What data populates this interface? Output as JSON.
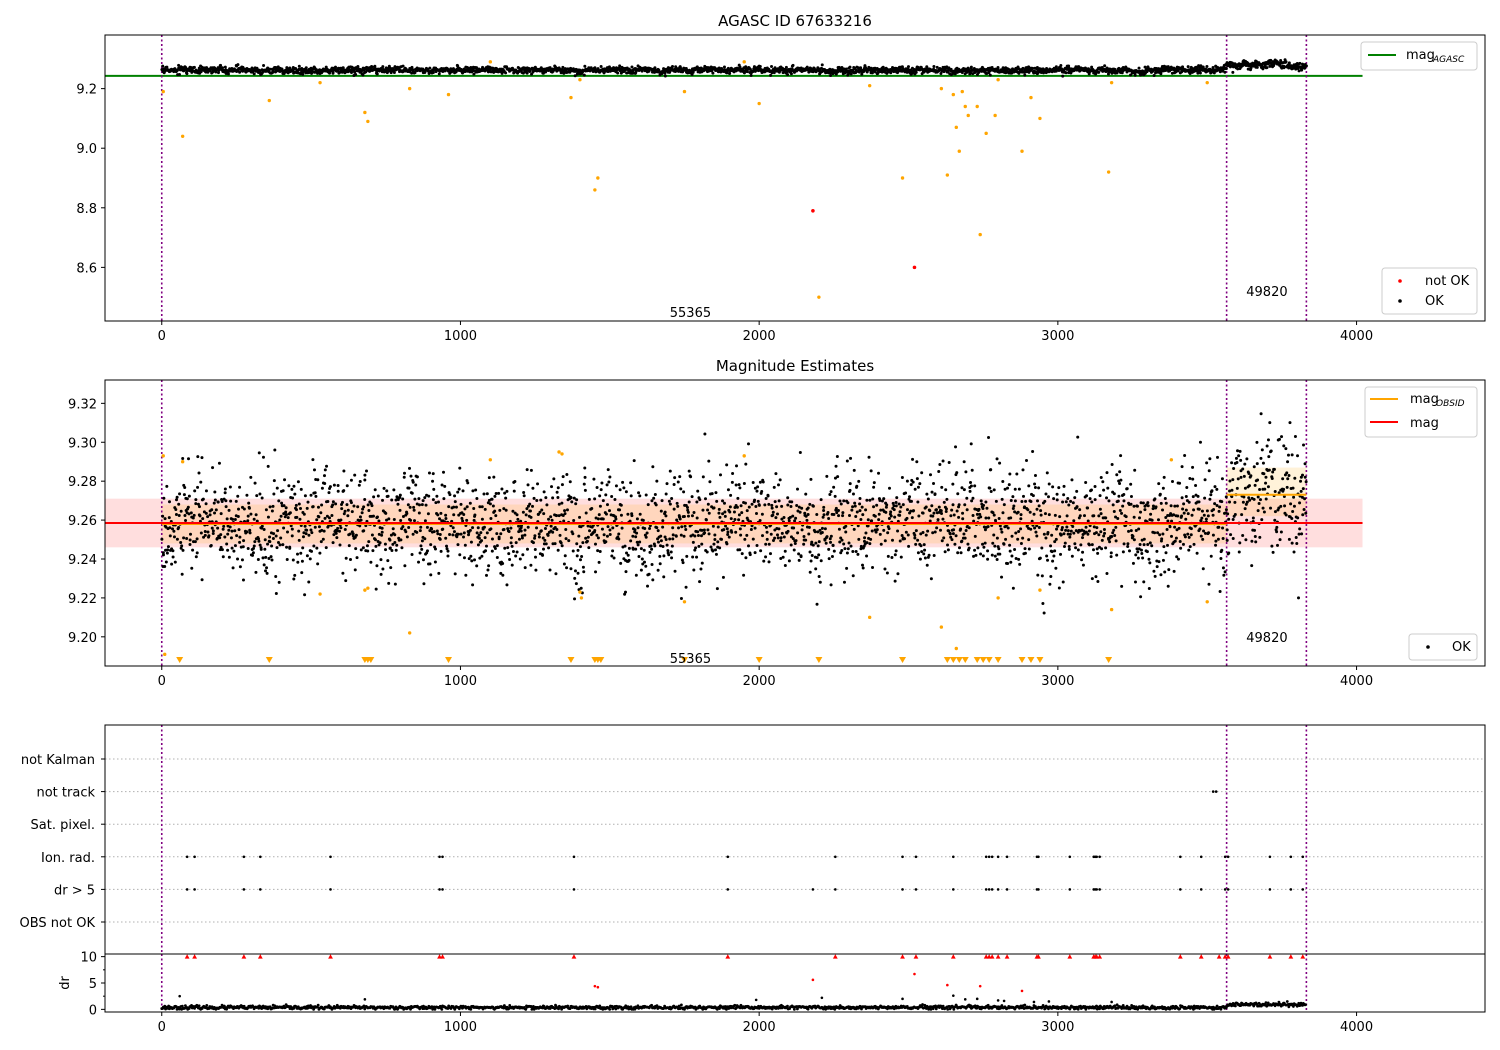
{
  "figure": {
    "width": 1500,
    "height": 1050
  },
  "chart_data": [
    {
      "type": "scatter",
      "title": "AGASC ID 67633216",
      "xlabel": "",
      "ylabel": "",
      "xlim": [
        -190,
        4430
      ],
      "ylim": [
        8.42,
        9.38
      ],
      "xticks": [
        0,
        1000,
        2000,
        3000,
        4000
      ],
      "yticks": [
        8.6,
        8.8,
        9.0,
        9.2
      ],
      "ytick_labels": [
        "8.6",
        "8.8",
        "9.0",
        "9.2"
      ],
      "obs_boundaries": [
        0,
        3565,
        3832
      ],
      "obs_labels": [
        {
          "text": "55365",
          "x": 1770,
          "y": 8.45
        },
        {
          "text": "49820",
          "x": 3700,
          "y": 8.52
        }
      ],
      "hlines": [
        {
          "name": "mag_AGASC",
          "y": 9.243,
          "x": [
            -190,
            4020
          ],
          "color": "#008000"
        }
      ],
      "ok_band": {
        "segments": [
          {
            "x": [
              0,
              3565
            ],
            "center": 9.262,
            "amp": 0.01
          },
          {
            "x": [
              3565,
              3832
            ],
            "center": 9.278,
            "amp": 0.012
          }
        ]
      },
      "outliers_orange": [
        [
          5,
          9.19
        ],
        [
          70,
          9.04
        ],
        [
          360,
          9.16
        ],
        [
          530,
          9.22
        ],
        [
          680,
          9.12
        ],
        [
          690,
          9.09
        ],
        [
          830,
          9.2
        ],
        [
          960,
          9.18
        ],
        [
          1100,
          9.29
        ],
        [
          1370,
          9.17
        ],
        [
          1400,
          9.23
        ],
        [
          1450,
          8.86
        ],
        [
          1460,
          8.9
        ],
        [
          1750,
          9.19
        ],
        [
          1950,
          9.29
        ],
        [
          2000,
          9.15
        ],
        [
          2200,
          8.5
        ],
        [
          2370,
          9.21
        ],
        [
          2480,
          8.9
        ],
        [
          2610,
          9.2
        ],
        [
          2630,
          8.91
        ],
        [
          2650,
          9.18
        ],
        [
          2660,
          9.07
        ],
        [
          2670,
          8.99
        ],
        [
          2680,
          9.19
        ],
        [
          2690,
          9.14
        ],
        [
          2700,
          9.11
        ],
        [
          2730,
          9.14
        ],
        [
          2740,
          8.71
        ],
        [
          2760,
          9.05
        ],
        [
          2790,
          9.11
        ],
        [
          2800,
          9.23
        ],
        [
          2880,
          8.99
        ],
        [
          2910,
          9.17
        ],
        [
          2940,
          9.1
        ],
        [
          3170,
          8.92
        ],
        [
          3180,
          9.22
        ],
        [
          3500,
          9.22
        ]
      ],
      "not_ok_points": [
        [
          2180,
          8.79
        ],
        [
          2520,
          8.6
        ]
      ],
      "legend": {
        "position": "top-right",
        "lines": [
          {
            "label": "mag",
            "sub": "AGASC",
            "color": "#008000"
          }
        ],
        "markers_position": "bottom-right",
        "markers": [
          {
            "label": "not OK",
            "color": "#ff0000"
          },
          {
            "label": "OK",
            "color": "#000000"
          }
        ]
      }
    },
    {
      "type": "scatter",
      "title": "Magnitude Estimates",
      "xlabel": "",
      "ylabel": "",
      "xlim": [
        -190,
        4430
      ],
      "ylim": [
        9.185,
        9.332
      ],
      "xticks": [
        0,
        1000,
        2000,
        3000,
        4000
      ],
      "yticks": [
        9.2,
        9.22,
        9.24,
        9.26,
        9.28,
        9.3,
        9.32
      ],
      "ytick_labels": [
        "9.20",
        "9.22",
        "9.24",
        "9.26",
        "9.28",
        "9.30",
        "9.32"
      ],
      "obs_boundaries": [
        0,
        3565,
        3832
      ],
      "obs_labels": [
        {
          "text": "55365",
          "x": 1770,
          "y": 9.189
        },
        {
          "text": "49820",
          "x": 3700,
          "y": 9.2
        }
      ],
      "mag_line": {
        "y": 9.2585,
        "x": [
          -190,
          4020
        ],
        "band": [
          9.246,
          9.271
        ],
        "color": "#ff0000"
      },
      "obsid_mags": [
        {
          "x": [
            0,
            3565
          ],
          "y": 9.258,
          "band": [
            9.248,
            9.268
          ]
        },
        {
          "x": [
            3565,
            3832
          ],
          "y": 9.273,
          "band": [
            9.262,
            9.287
          ]
        }
      ],
      "ok_band": {
        "segments": [
          {
            "x": [
              0,
              3565
            ],
            "center": 9.258,
            "amp": 0.017
          },
          {
            "x": [
              3565,
              3832
            ],
            "center": 9.272,
            "amp": 0.02
          }
        ]
      },
      "outliers_orange": [
        [
          5,
          9.293
        ],
        [
          10,
          9.191
        ],
        [
          70,
          9.29
        ],
        [
          530,
          9.222
        ],
        [
          680,
          9.224
        ],
        [
          690,
          9.225
        ],
        [
          830,
          9.202
        ],
        [
          1100,
          9.291
        ],
        [
          1330,
          9.295
        ],
        [
          1340,
          9.294
        ],
        [
          1400,
          9.223
        ],
        [
          1405,
          9.22
        ],
        [
          1750,
          9.218
        ],
        [
          1950,
          9.293
        ],
        [
          2370,
          9.21
        ],
        [
          2610,
          9.205
        ],
        [
          2660,
          9.194
        ],
        [
          2800,
          9.22
        ],
        [
          2940,
          9.224
        ],
        [
          3180,
          9.214
        ],
        [
          3380,
          9.291
        ],
        [
          3500,
          9.218
        ]
      ],
      "triangles": [
        60,
        360,
        680,
        690,
        700,
        960,
        1370,
        1450,
        1460,
        1470,
        1750,
        2000,
        2200,
        2480,
        2630,
        2650,
        2670,
        2690,
        2730,
        2750,
        2770,
        2800,
        2880,
        2910,
        2940,
        3170
      ],
      "legend": {
        "position": "top-right",
        "lines": [
          {
            "label": "mag",
            "sub": "OBSID",
            "color": "#ffa500"
          },
          {
            "label": "mag",
            "sub": "",
            "color": "#ff0000"
          }
        ],
        "markers_position": "bottom-right",
        "markers": [
          {
            "label": "OK",
            "color": "#000000"
          }
        ]
      }
    },
    {
      "type": "scatter",
      "title": "",
      "xlabel": "",
      "ylabel": "",
      "xlim": [
        -190,
        4430
      ],
      "categories": [
        "not Kalman",
        "not track",
        "Sat. pixel.",
        "Ion. rad.",
        "dr > 5",
        "OBS not OK"
      ],
      "obs_boundaries": [
        0,
        3565,
        3832
      ],
      "flags": {
        "not track": [
          3520,
          3530
        ],
        "Ion. rad.": [
          85,
          110,
          275,
          330,
          565,
          930,
          940,
          1380,
          1895,
          2255,
          2480,
          2525,
          2650,
          2760,
          2770,
          2780,
          2800,
          2830,
          2930,
          2935,
          3040,
          3120,
          3125,
          3130,
          3140,
          3410,
          3480,
          3560,
          3570,
          3710,
          3780,
          3820
        ],
        "dr > 5": [
          85,
          110,
          275,
          330,
          565,
          930,
          940,
          1380,
          1895,
          2180,
          2255,
          2480,
          2525,
          2650,
          2760,
          2770,
          2780,
          2800,
          2830,
          2930,
          2935,
          3040,
          3120,
          3125,
          3130,
          3140,
          3410,
          3480,
          3560,
          3570,
          3710,
          3780,
          3820
        ]
      }
    },
    {
      "type": "scatter",
      "title": "",
      "xlabel": "",
      "ylabel": "dr",
      "xlim": [
        -190,
        4430
      ],
      "ylim": [
        -0.5,
        10.5
      ],
      "xticks": [
        0,
        1000,
        2000,
        3000,
        4000
      ],
      "yticks": [
        0,
        5,
        10
      ],
      "obs_boundaries": [
        0,
        3565,
        3832
      ],
      "red_points": [
        [
          85,
          10
        ],
        [
          110,
          10
        ],
        [
          275,
          10
        ],
        [
          330,
          10
        ],
        [
          565,
          10
        ],
        [
          930,
          10
        ],
        [
          940,
          10
        ],
        [
          1380,
          10
        ],
        [
          1450,
          4.4
        ],
        [
          1460,
          4.2
        ],
        [
          1895,
          10
        ],
        [
          2180,
          5.6
        ],
        [
          2255,
          10
        ],
        [
          2480,
          10
        ],
        [
          2520,
          6.7
        ],
        [
          2525,
          10
        ],
        [
          2630,
          4.6
        ],
        [
          2650,
          10
        ],
        [
          2740,
          4.4
        ],
        [
          2760,
          10
        ],
        [
          2770,
          10
        ],
        [
          2780,
          10
        ],
        [
          2800,
          10
        ],
        [
          2830,
          10
        ],
        [
          2880,
          3.5
        ],
        [
          2930,
          10
        ],
        [
          2935,
          10
        ],
        [
          3040,
          10
        ],
        [
          3120,
          10
        ],
        [
          3125,
          10
        ],
        [
          3130,
          10
        ],
        [
          3140,
          10
        ],
        [
          3410,
          10
        ],
        [
          3480,
          10
        ],
        [
          3540,
          10
        ],
        [
          3560,
          10
        ],
        [
          3570,
          10
        ],
        [
          3710,
          10
        ],
        [
          3780,
          10
        ],
        [
          3820,
          10
        ]
      ],
      "scatter_points": [
        [
          60,
          2.5
        ],
        [
          680,
          1.9
        ],
        [
          1990,
          1.8
        ],
        [
          2210,
          2.2
        ],
        [
          2480,
          2.0
        ],
        [
          2650,
          2.6
        ],
        [
          2690,
          1.9
        ],
        [
          2730,
          2.0
        ],
        [
          2800,
          1.7
        ],
        [
          2820,
          1.6
        ],
        [
          2920,
          1.4
        ],
        [
          2970,
          1.5
        ],
        [
          3180,
          1.4
        ]
      ]
    }
  ]
}
